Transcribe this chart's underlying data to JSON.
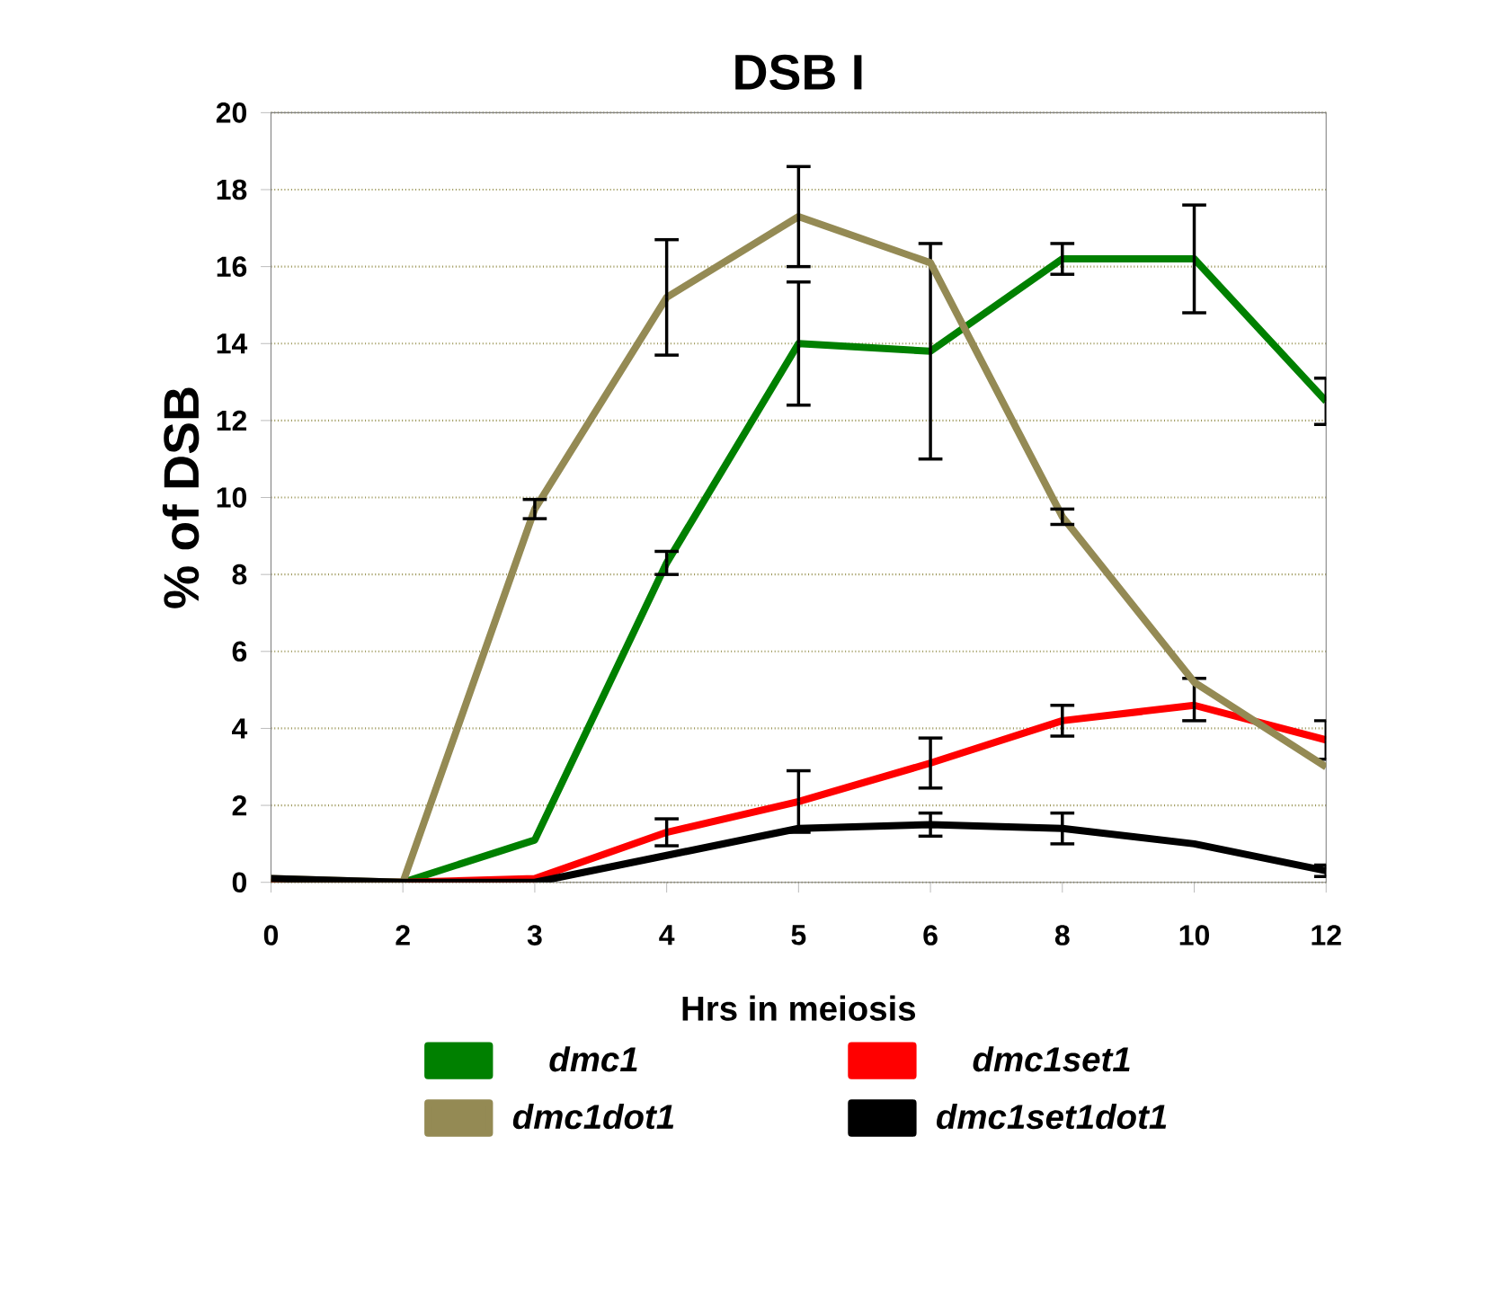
{
  "chart_data": {
    "type": "line",
    "title": "DSB I",
    "xlabel": "Hrs in meiosis",
    "ylabel": "% of DSB",
    "categories": [
      "0",
      "2",
      "3",
      "4",
      "5",
      "6",
      "8",
      "10",
      "12"
    ],
    "ylim": [
      0,
      20
    ],
    "yticks": [
      0,
      2,
      4,
      6,
      8,
      10,
      12,
      14,
      16,
      18,
      20
    ],
    "grid": "y",
    "legend": "bottom",
    "marker": "none",
    "line_style": "solid",
    "series": [
      {
        "name": "dmc1",
        "color": "#008000",
        "values": [
          0,
          0,
          1.1,
          8.3,
          14.0,
          13.8,
          16.2,
          16.2,
          12.5
        ],
        "errors": [
          null,
          null,
          null,
          0.3,
          1.6,
          2.8,
          0.4,
          1.4,
          0.6
        ]
      },
      {
        "name": "dmc1set1",
        "color": "#ff0000",
        "values": [
          0,
          0,
          0.1,
          1.3,
          2.1,
          3.1,
          4.2,
          4.6,
          3.7
        ],
        "errors": [
          null,
          null,
          null,
          0.35,
          0.8,
          0.65,
          0.4,
          [
            4.2,
            5.3
          ],
          0.5
        ]
      },
      {
        "name": "dmc1dot1",
        "color": "#948a54",
        "values": [
          0.1,
          0,
          9.7,
          15.2,
          17.3,
          16.1,
          9.5,
          5.2,
          3.0
        ],
        "errors": [
          null,
          null,
          0.25,
          1.5,
          1.3,
          null,
          0.2,
          null,
          null
        ]
      },
      {
        "name": "dmc1set1dot1",
        "color": "#000000",
        "values": [
          0.1,
          0,
          0,
          0.7,
          1.4,
          1.5,
          1.4,
          1.0,
          0.3
        ],
        "errors": [
          null,
          null,
          null,
          null,
          null,
          0.3,
          0.4,
          null,
          0.15
        ]
      }
    ]
  }
}
